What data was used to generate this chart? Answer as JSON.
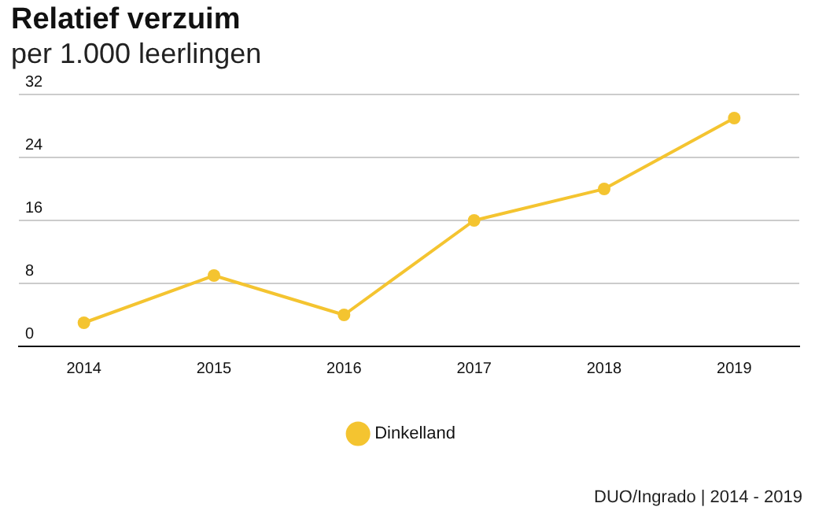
{
  "chart_data": {
    "type": "line",
    "title": "Relatief verzuim",
    "subtitle": "per 1.000 leerlingen",
    "categories": [
      "2014",
      "2015",
      "2016",
      "2017",
      "2018",
      "2019"
    ],
    "series": [
      {
        "name": "Dinkelland",
        "color": "#f4c430",
        "values": [
          3,
          9,
          4,
          16,
          20,
          29
        ]
      }
    ],
    "ylim": [
      0,
      32
    ],
    "yticks": [
      0,
      8,
      16,
      24,
      32
    ],
    "grid": "y",
    "legend": "bottom",
    "marker": "circle",
    "line_style": "solid",
    "annotations": [
      "DUO/Ingrado | 2014 - 2019"
    ]
  }
}
